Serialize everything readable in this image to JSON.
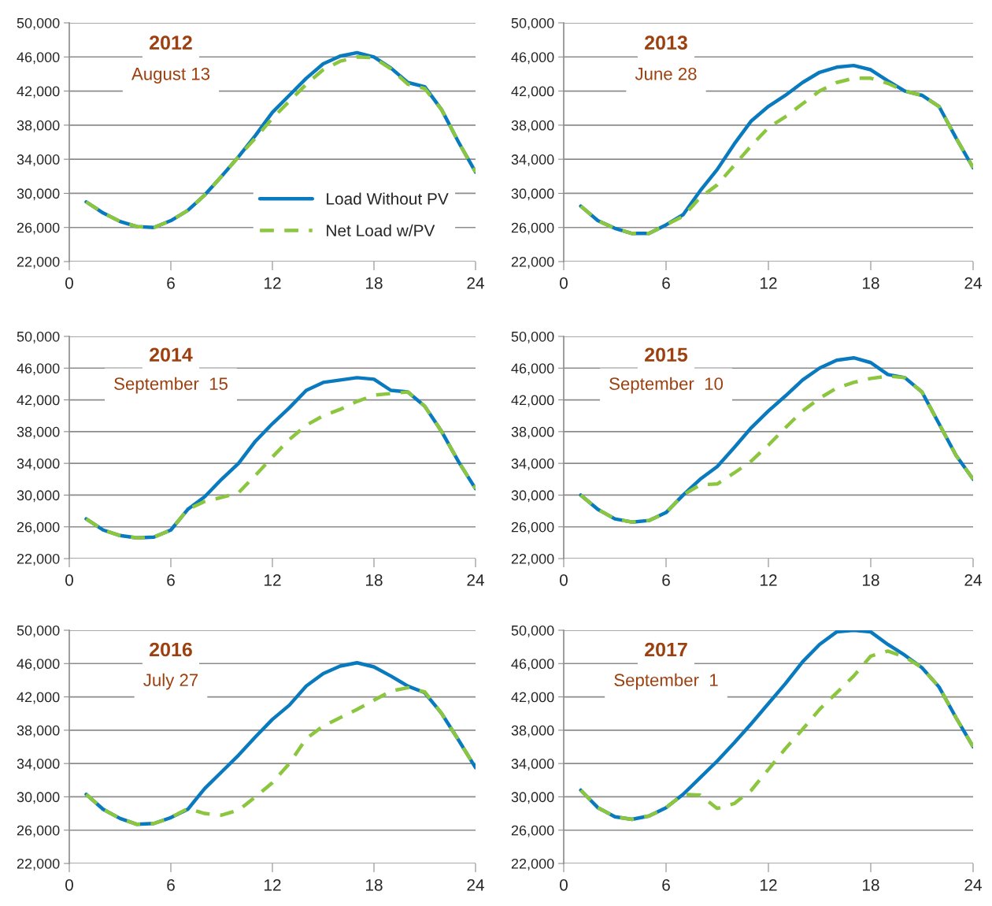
{
  "chart_data": [
    {
      "type": "line",
      "title": "2012",
      "subtitle": "August 13",
      "x": [
        1,
        2,
        3,
        4,
        5,
        6,
        7,
        8,
        9,
        10,
        11,
        12,
        13,
        14,
        15,
        16,
        17,
        18,
        19,
        20,
        21,
        22,
        23,
        24
      ],
      "xlim": [
        0,
        24
      ],
      "xticks": [
        0,
        6,
        12,
        18,
        24
      ],
      "ylim": [
        22000,
        50000
      ],
      "yticks": [
        {
          "value": 22000,
          "label": "22,000"
        },
        {
          "value": 26000,
          "label": "26,000"
        },
        {
          "value": 30000,
          "label": "30,000"
        },
        {
          "value": 34000,
          "label": "34,000"
        },
        {
          "value": 38000,
          "label": "38,000"
        },
        {
          "value": 42000,
          "label": "42,000"
        },
        {
          "value": 46000,
          "label": "46,000"
        },
        {
          "value": 50000,
          "label": "50,000"
        }
      ],
      "grid": "y",
      "legend": "bottom right",
      "series": [
        {
          "name": "Load Without PV",
          "color": "#0a7abf",
          "line_style": "solid",
          "values": [
            29000,
            27700,
            26700,
            26100,
            26000,
            26800,
            28000,
            29800,
            32000,
            34300,
            36800,
            39500,
            41500,
            43500,
            45200,
            46100,
            46500,
            46000,
            44700,
            43000,
            42500,
            39800,
            36000,
            32500
          ]
        },
        {
          "name": "Net Load w/PV",
          "color": "#8cc63f",
          "line_style": "dashed",
          "values": [
            29000,
            27700,
            26700,
            26100,
            26000,
            26800,
            28000,
            29800,
            32000,
            34300,
            36500,
            38800,
            40800,
            42800,
            44500,
            45500,
            46000,
            45900,
            44600,
            42800,
            42300,
            39800,
            36000,
            32500
          ]
        }
      ]
    },
    {
      "type": "line",
      "title": "2013",
      "subtitle": "June 28",
      "x": [
        1,
        2,
        3,
        4,
        5,
        6,
        7,
        8,
        9,
        10,
        11,
        12,
        13,
        14,
        15,
        16,
        17,
        18,
        19,
        20,
        21,
        22,
        23,
        24
      ],
      "xlim": [
        0,
        24
      ],
      "xticks": [
        0,
        6,
        12,
        18,
        24
      ],
      "ylim": [
        22000,
        50000
      ],
      "yticks": [
        {
          "value": 22000,
          "label": "22,000"
        },
        {
          "value": 26000,
          "label": "26,000"
        },
        {
          "value": 30000,
          "label": "30,000"
        },
        {
          "value": 34000,
          "label": "34,000"
        },
        {
          "value": 38000,
          "label": "38,000"
        },
        {
          "value": 42000,
          "label": "42,000"
        },
        {
          "value": 46000,
          "label": "46,000"
        },
        {
          "value": 50000,
          "label": "50,000"
        }
      ],
      "grid": "y",
      "series": [
        {
          "color": "#0a7abf",
          "line_style": "solid",
          "values": [
            28500,
            26800,
            25900,
            25300,
            25300,
            26300,
            27500,
            30300,
            32800,
            35800,
            38500,
            40200,
            41500,
            43000,
            44200,
            44800,
            45000,
            44500,
            43200,
            42000,
            41500,
            40200,
            36500,
            33000
          ]
        },
        {
          "color": "#8cc63f",
          "line_style": "dashed",
          "values": [
            28500,
            26800,
            25900,
            25300,
            25300,
            26300,
            27300,
            29500,
            31000,
            33300,
            35600,
            37700,
            39000,
            40500,
            42000,
            43000,
            43500,
            43500,
            42900,
            42000,
            41500,
            40200,
            36500,
            33000
          ]
        }
      ]
    },
    {
      "type": "line",
      "title": "2014",
      "subtitle": "September  15",
      "x": [
        1,
        2,
        3,
        4,
        5,
        6,
        7,
        8,
        9,
        10,
        11,
        12,
        13,
        14,
        15,
        16,
        17,
        18,
        19,
        20,
        21,
        22,
        23,
        24
      ],
      "xlim": [
        0,
        24
      ],
      "xticks": [
        0,
        6,
        12,
        18,
        24
      ],
      "ylim": [
        22000,
        50000
      ],
      "yticks": [
        {
          "value": 22000,
          "label": "22,000"
        },
        {
          "value": 26000,
          "label": "26,000"
        },
        {
          "value": 30000,
          "label": "30,000"
        },
        {
          "value": 34000,
          "label": "34,000"
        },
        {
          "value": 38000,
          "label": "38,000"
        },
        {
          "value": 42000,
          "label": "42,000"
        },
        {
          "value": 46000,
          "label": "46,000"
        },
        {
          "value": 50000,
          "label": "50,000"
        }
      ],
      "grid": "y",
      "series": [
        {
          "color": "#0a7abf",
          "line_style": "solid",
          "values": [
            27000,
            25600,
            24900,
            24600,
            24700,
            25600,
            28200,
            29800,
            32000,
            34000,
            36800,
            39000,
            41000,
            43200,
            44200,
            44500,
            44800,
            44600,
            43200,
            43000,
            41200,
            38000,
            34200,
            30800
          ]
        },
        {
          "color": "#8cc63f",
          "line_style": "dashed",
          "values": [
            27000,
            25600,
            24900,
            24600,
            24700,
            25600,
            28200,
            29200,
            29700,
            30300,
            32500,
            34800,
            37000,
            38800,
            40000,
            40800,
            41800,
            42600,
            42800,
            43000,
            41200,
            38000,
            34200,
            30800
          ]
        }
      ]
    },
    {
      "type": "line",
      "title": "2015",
      "subtitle": "September  10",
      "x": [
        1,
        2,
        3,
        4,
        5,
        6,
        7,
        8,
        9,
        10,
        11,
        12,
        13,
        14,
        15,
        16,
        17,
        18,
        19,
        20,
        21,
        22,
        23,
        24
      ],
      "xlim": [
        0,
        24
      ],
      "xticks": [
        0,
        6,
        12,
        18,
        24
      ],
      "ylim": [
        22000,
        50000
      ],
      "yticks": [
        {
          "value": 22000,
          "label": "22,000"
        },
        {
          "value": 26000,
          "label": "26,000"
        },
        {
          "value": 30000,
          "label": "30,000"
        },
        {
          "value": 34000,
          "label": "34,000"
        },
        {
          "value": 38000,
          "label": "38,000"
        },
        {
          "value": 42000,
          "label": "42,000"
        },
        {
          "value": 46000,
          "label": "46,000"
        },
        {
          "value": 50000,
          "label": "50,000"
        }
      ],
      "grid": "y",
      "series": [
        {
          "color": "#0a7abf",
          "line_style": "solid",
          "values": [
            30000,
            28200,
            27000,
            26600,
            26800,
            27800,
            30000,
            32000,
            33600,
            36000,
            38500,
            40600,
            42500,
            44500,
            46000,
            47000,
            47300,
            46700,
            45200,
            44800,
            43000,
            39000,
            35000,
            32000
          ]
        },
        {
          "color": "#8cc63f",
          "line_style": "dashed",
          "values": [
            30000,
            28200,
            27000,
            26600,
            26800,
            27800,
            30000,
            31300,
            31400,
            32800,
            34300,
            36300,
            38500,
            40600,
            42200,
            43500,
            44200,
            44700,
            45000,
            44800,
            43000,
            39000,
            35000,
            32000
          ]
        }
      ]
    },
    {
      "type": "line",
      "title": "2016",
      "subtitle": "July 27",
      "x": [
        1,
        2,
        3,
        4,
        5,
        6,
        7,
        8,
        9,
        10,
        11,
        12,
        13,
        14,
        15,
        16,
        17,
        18,
        19,
        20,
        21,
        22,
        23,
        24
      ],
      "xlim": [
        0,
        24
      ],
      "xticks": [
        0,
        6,
        12,
        18,
        24
      ],
      "ylim": [
        22000,
        50000
      ],
      "yticks": [
        {
          "value": 22000,
          "label": "22,000"
        },
        {
          "value": 26000,
          "label": "26,000"
        },
        {
          "value": 30000,
          "label": "30,000"
        },
        {
          "value": 34000,
          "label": "34,000"
        },
        {
          "value": 38000,
          "label": "38,000"
        },
        {
          "value": 42000,
          "label": "42,000"
        },
        {
          "value": 46000,
          "label": "46,000"
        },
        {
          "value": 50000,
          "label": "50,000"
        }
      ],
      "grid": "y",
      "series": [
        {
          "color": "#0a7abf",
          "line_style": "solid",
          "values": [
            30300,
            28500,
            27400,
            26700,
            26800,
            27500,
            28500,
            31000,
            33000,
            35000,
            37200,
            39300,
            41000,
            43300,
            44800,
            45700,
            46100,
            45600,
            44500,
            43300,
            42500,
            40000,
            36800,
            33500
          ]
        },
        {
          "color": "#8cc63f",
          "line_style": "dashed",
          "values": [
            30300,
            28500,
            27400,
            26700,
            26800,
            27500,
            28600,
            28000,
            27800,
            28400,
            30000,
            31700,
            34000,
            37000,
            38500,
            39500,
            40500,
            41600,
            42700,
            43100,
            42600,
            40000,
            36800,
            33500
          ]
        }
      ]
    },
    {
      "type": "line",
      "title": "2017",
      "subtitle": "September  1",
      "x": [
        1,
        2,
        3,
        4,
        5,
        6,
        7,
        8,
        9,
        10,
        11,
        12,
        13,
        14,
        15,
        16,
        17,
        18,
        19,
        20,
        21,
        22,
        23,
        24
      ],
      "xlim": [
        0,
        24
      ],
      "xticks": [
        0,
        6,
        12,
        18,
        24
      ],
      "ylim": [
        22000,
        50000
      ],
      "yticks": [
        {
          "value": 22000,
          "label": "22,000"
        },
        {
          "value": 26000,
          "label": "26,000"
        },
        {
          "value": 30000,
          "label": "30,000"
        },
        {
          "value": 34000,
          "label": "34,000"
        },
        {
          "value": 38000,
          "label": "38,000"
        },
        {
          "value": 42000,
          "label": "42,000"
        },
        {
          "value": 46000,
          "label": "46,000"
        },
        {
          "value": 50000,
          "label": "50,000"
        }
      ],
      "grid": "y",
      "series": [
        {
          "color": "#0a7abf",
          "line_style": "solid",
          "values": [
            30800,
            28700,
            27600,
            27300,
            27700,
            28700,
            30300,
            32300,
            34300,
            36500,
            38800,
            41200,
            43600,
            46200,
            48300,
            49800,
            50000,
            49800,
            48300,
            47000,
            45500,
            43200,
            39500,
            36000
          ]
        },
        {
          "color": "#8cc63f",
          "line_style": "dashed",
          "values": [
            30800,
            28700,
            27600,
            27300,
            27700,
            28700,
            30300,
            30200,
            28600,
            29200,
            30800,
            33300,
            35800,
            38100,
            40500,
            42500,
            44500,
            46900,
            47500,
            46800,
            45500,
            43200,
            39500,
            36000
          ]
        }
      ]
    }
  ]
}
